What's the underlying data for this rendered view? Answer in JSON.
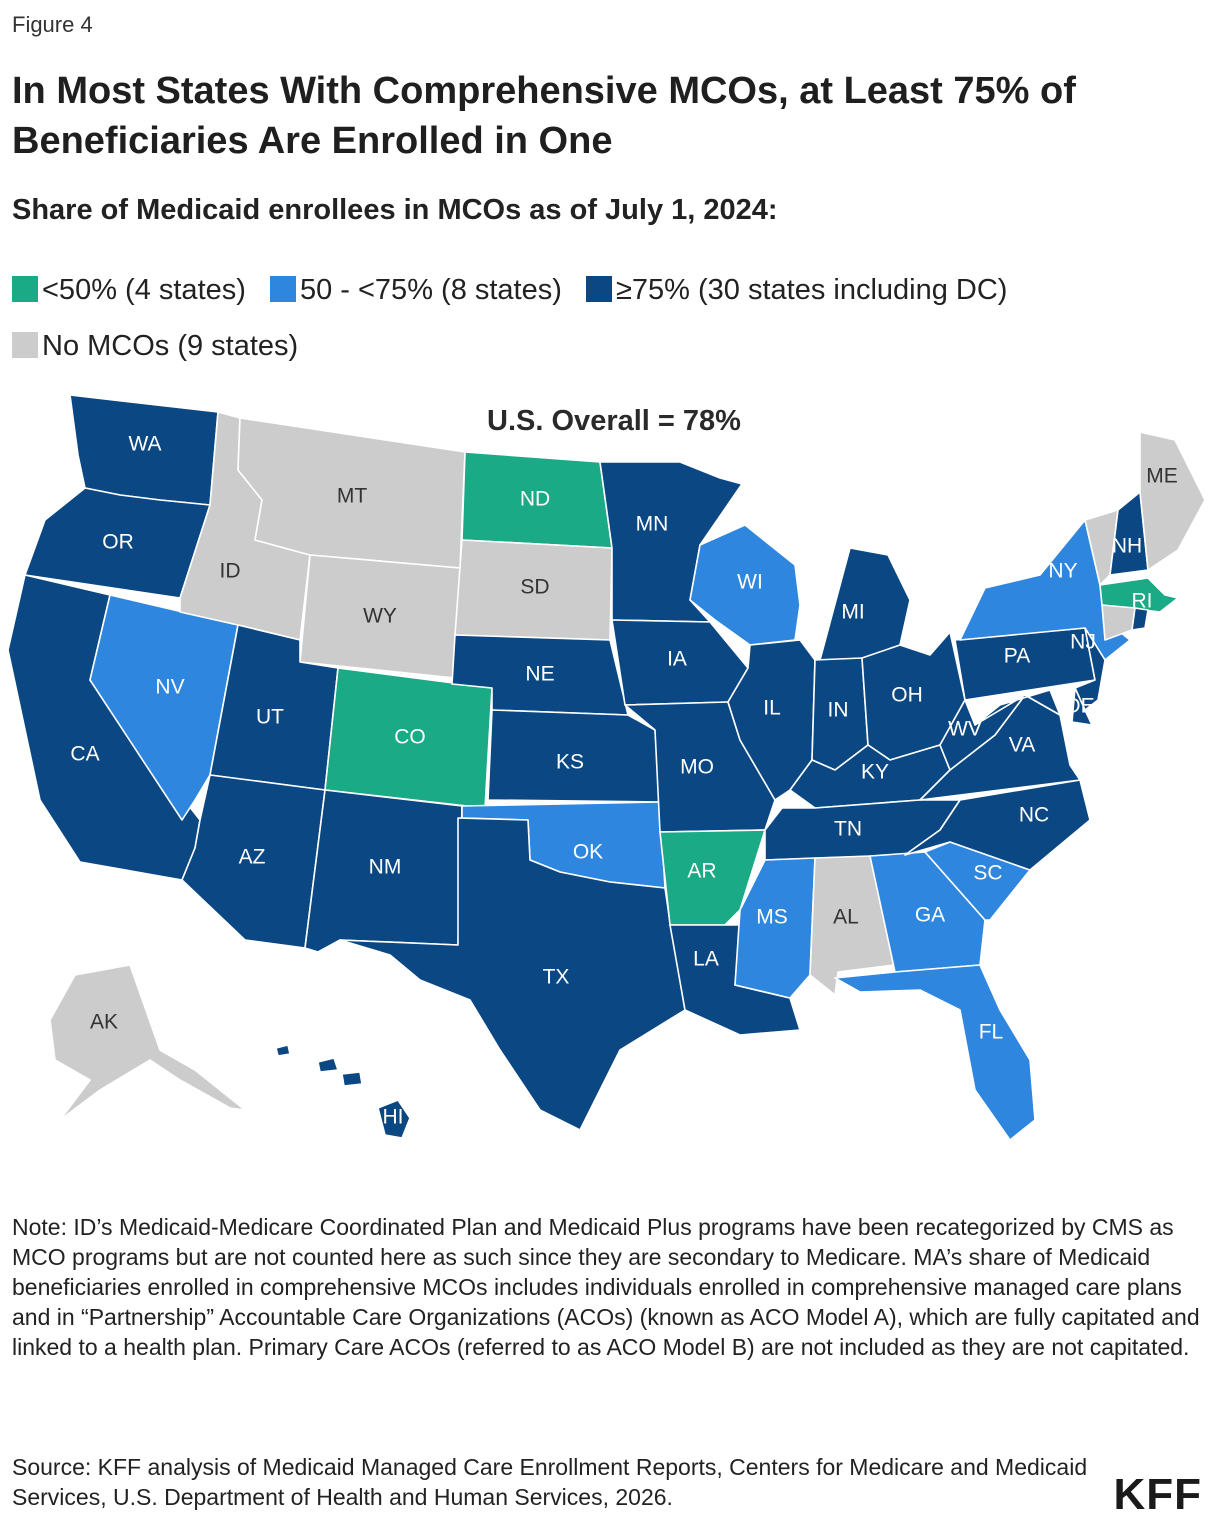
{
  "figure_label": "Figure 4",
  "title": "In Most States With Comprehensive MCOs, at Least 75% of Beneficiaries Are Enrolled in One",
  "subtitle": "Share of Medicaid enrollees in MCOs as of July 1, 2024:",
  "legend": [
    {
      "label": "<50% (4 states)",
      "color": "#1aaa85"
    },
    {
      "label": "50 - <75% (8 states)",
      "color": "#2e86de"
    },
    {
      "label": "≥75% (30 states including DC)",
      "color": "#0b4883"
    },
    {
      "label": "No MCOs (9 states)",
      "color": "#cccccc"
    }
  ],
  "overall": "U.S. Overall = 78%",
  "colors": {
    "lt50": "#1aaa85",
    "mid": "#2e86de",
    "ge75": "#0b4883",
    "none": "#cccccc"
  },
  "map_data": {
    "WA": "ge75",
    "OR": "ge75",
    "CA": "ge75",
    "ID": "none",
    "NV": "mid",
    "UT": "ge75",
    "AZ": "ge75",
    "MT": "none",
    "WY": "none",
    "CO": "lt50",
    "NM": "ge75",
    "ND": "lt50",
    "SD": "none",
    "NE": "ge75",
    "KS": "ge75",
    "OK": "mid",
    "TX": "ge75",
    "MN": "ge75",
    "IA": "ge75",
    "MO": "ge75",
    "AR": "lt50",
    "LA": "ge75",
    "WI": "mid",
    "IL": "ge75",
    "MS": "mid",
    "MI": "ge75",
    "IN": "ge75",
    "KY": "ge75",
    "TN": "ge75",
    "AL": "none",
    "OH": "ge75",
    "WV": "ge75",
    "VA": "ge75",
    "NC": "ge75",
    "SC": "mid",
    "GA": "mid",
    "FL": "mid",
    "PA": "ge75",
    "NY": "mid",
    "NJ": "ge75",
    "DE": "ge75",
    "MD": "ge75",
    "DC": "ge75",
    "VT": "none",
    "NH": "ge75",
    "ME": "none",
    "MA": "lt50",
    "RI": "ge75",
    "CT": "none",
    "AK": "none",
    "HI": "ge75"
  },
  "state_labels": {
    "WA": "WA",
    "OR": "OR",
    "CA": "CA",
    "ID": "ID",
    "NV": "NV",
    "UT": "UT",
    "AZ": "AZ",
    "MT": "MT",
    "WY": "WY",
    "CO": "CO",
    "NM": "NM",
    "ND": "ND",
    "SD": "SD",
    "NE": "NE",
    "KS": "KS",
    "OK": "OK",
    "TX": "TX",
    "MN": "MN",
    "IA": "IA",
    "MO": "MO",
    "AR": "AR",
    "LA": "LA",
    "WI": "WI",
    "IL": "IL",
    "MS": "MS",
    "MI": "MI",
    "IN": "IN",
    "KY": "KY",
    "TN": "TN",
    "AL": "AL",
    "OH": "OH",
    "WV": "WV",
    "VA": "VA",
    "NC": "NC",
    "SC": "SC",
    "GA": "GA",
    "FL": "FL",
    "PA": "PA",
    "NY": "NY",
    "NJ": "NJ",
    "DE": "DE",
    "NH": "NH",
    "ME": "ME",
    "RI": "RI",
    "AK": "AK",
    "HI": "HI"
  },
  "note": "Note: ID’s Medicaid-Medicare Coordinated Plan and Medicaid Plus programs have been recategorized by CMS as MCO programs but are not counted here as such since they are secondary to Medicare. MA’s share of Medicaid beneficiaries enrolled in comprehensive MCOs includes individuals enrolled in comprehensive managed care plans and in “Partnership” Accountable Care Organizations (ACOs) (known as ACO Model A), which are fully capitated and linked to a health plan. Primary Care ACOs (referred to as ACO Model B) are not included as they are not capitated.",
  "source": "Source: KFF analysis of Medicaid Managed Care Enrollment Reports, Centers for Medicare and Medicaid Services, U.S. Department of Health and Human Services, 2026.",
  "logo": "KFF"
}
